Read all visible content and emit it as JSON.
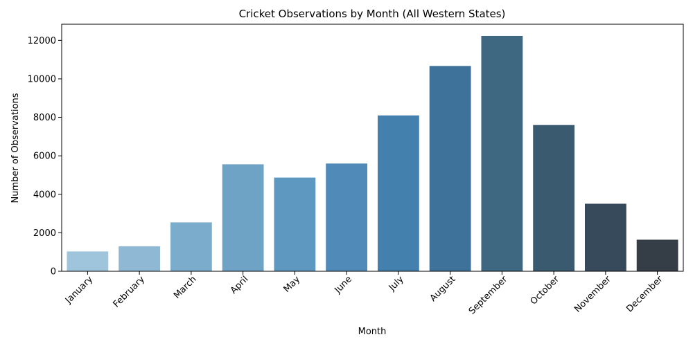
{
  "chart_data": {
    "type": "bar",
    "title": "Cricket Observations by Month (All Western States)",
    "xlabel": "Month",
    "ylabel": "Number of Observations",
    "categories": [
      "January",
      "February",
      "March",
      "April",
      "May",
      "June",
      "July",
      "August",
      "September",
      "October",
      "November",
      "December"
    ],
    "values": [
      1030,
      1300,
      2540,
      5560,
      4870,
      5600,
      8100,
      10670,
      12230,
      7600,
      3510,
      1640
    ],
    "ylim": [
      0,
      12840
    ],
    "yticks": [
      0,
      2000,
      4000,
      6000,
      8000,
      10000,
      12000
    ],
    "grid": false,
    "colors": [
      "#9fc5dc",
      "#8fb8d4",
      "#7caccc",
      "#6fa3c6",
      "#5e97c0",
      "#4f8ab8",
      "#4480ad",
      "#3f729a",
      "#3e6882",
      "#3a5a70",
      "#374a5b",
      "#353d47"
    ]
  }
}
